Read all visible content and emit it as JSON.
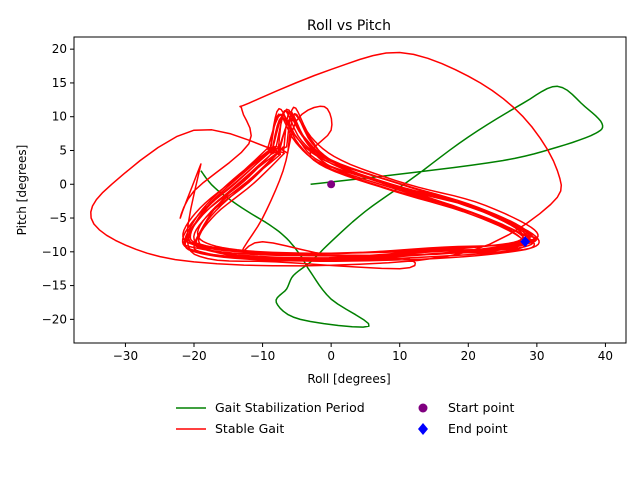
{
  "chart_data": {
    "type": "line",
    "title": "Roll vs Pitch",
    "xlabel": "Roll [degrees]",
    "ylabel": "Pitch [degrees]",
    "xlim": [
      -37.5,
      43
    ],
    "ylim": [
      -23.5,
      21.8
    ],
    "xticks": [
      -30,
      -20,
      -10,
      0,
      10,
      20,
      30,
      40
    ],
    "yticks": [
      -20,
      -15,
      -10,
      -5,
      0,
      5,
      10,
      15,
      20
    ],
    "grid": false,
    "legend_position": "bottom-center",
    "series": [
      {
        "name": "Gait Stabilization Period",
        "color": "#008000",
        "points": [
          [
            -3,
            0
          ],
          [
            10,
            1.5
          ],
          [
            25,
            3.5
          ],
          [
            33,
            5.5
          ],
          [
            38.5,
            7.5
          ],
          [
            39.5,
            9
          ],
          [
            37,
            11.5
          ],
          [
            33,
            14.5
          ],
          [
            28,
            12
          ],
          [
            20,
            7
          ],
          [
            12,
            1
          ],
          [
            5,
            -4
          ],
          [
            0,
            -8.5
          ],
          [
            -3,
            -11.5
          ],
          [
            -5.5,
            -13.5
          ],
          [
            -6.5,
            -15.5
          ],
          [
            -8,
            -17.5
          ],
          [
            -4.5,
            -20
          ],
          [
            5.5,
            -21
          ],
          [
            0,
            -17
          ],
          [
            -3,
            -13
          ],
          [
            -4.5,
            -10.5
          ],
          [
            -6.5,
            -8
          ],
          [
            -9,
            -6
          ],
          [
            -13,
            -3.5
          ],
          [
            -17,
            -0.5
          ],
          [
            -19,
            2
          ]
        ]
      },
      {
        "name": "Stable Gait",
        "color": "#ff0000"
      },
      {
        "name": "Start point",
        "color": "#800080",
        "marker": "circle",
        "points": [
          [
            0,
            0
          ]
        ]
      },
      {
        "name": "End point",
        "color": "#0000ff",
        "marker": "diamond",
        "points": [
          [
            28.3,
            -8.5
          ]
        ]
      }
    ]
  }
}
